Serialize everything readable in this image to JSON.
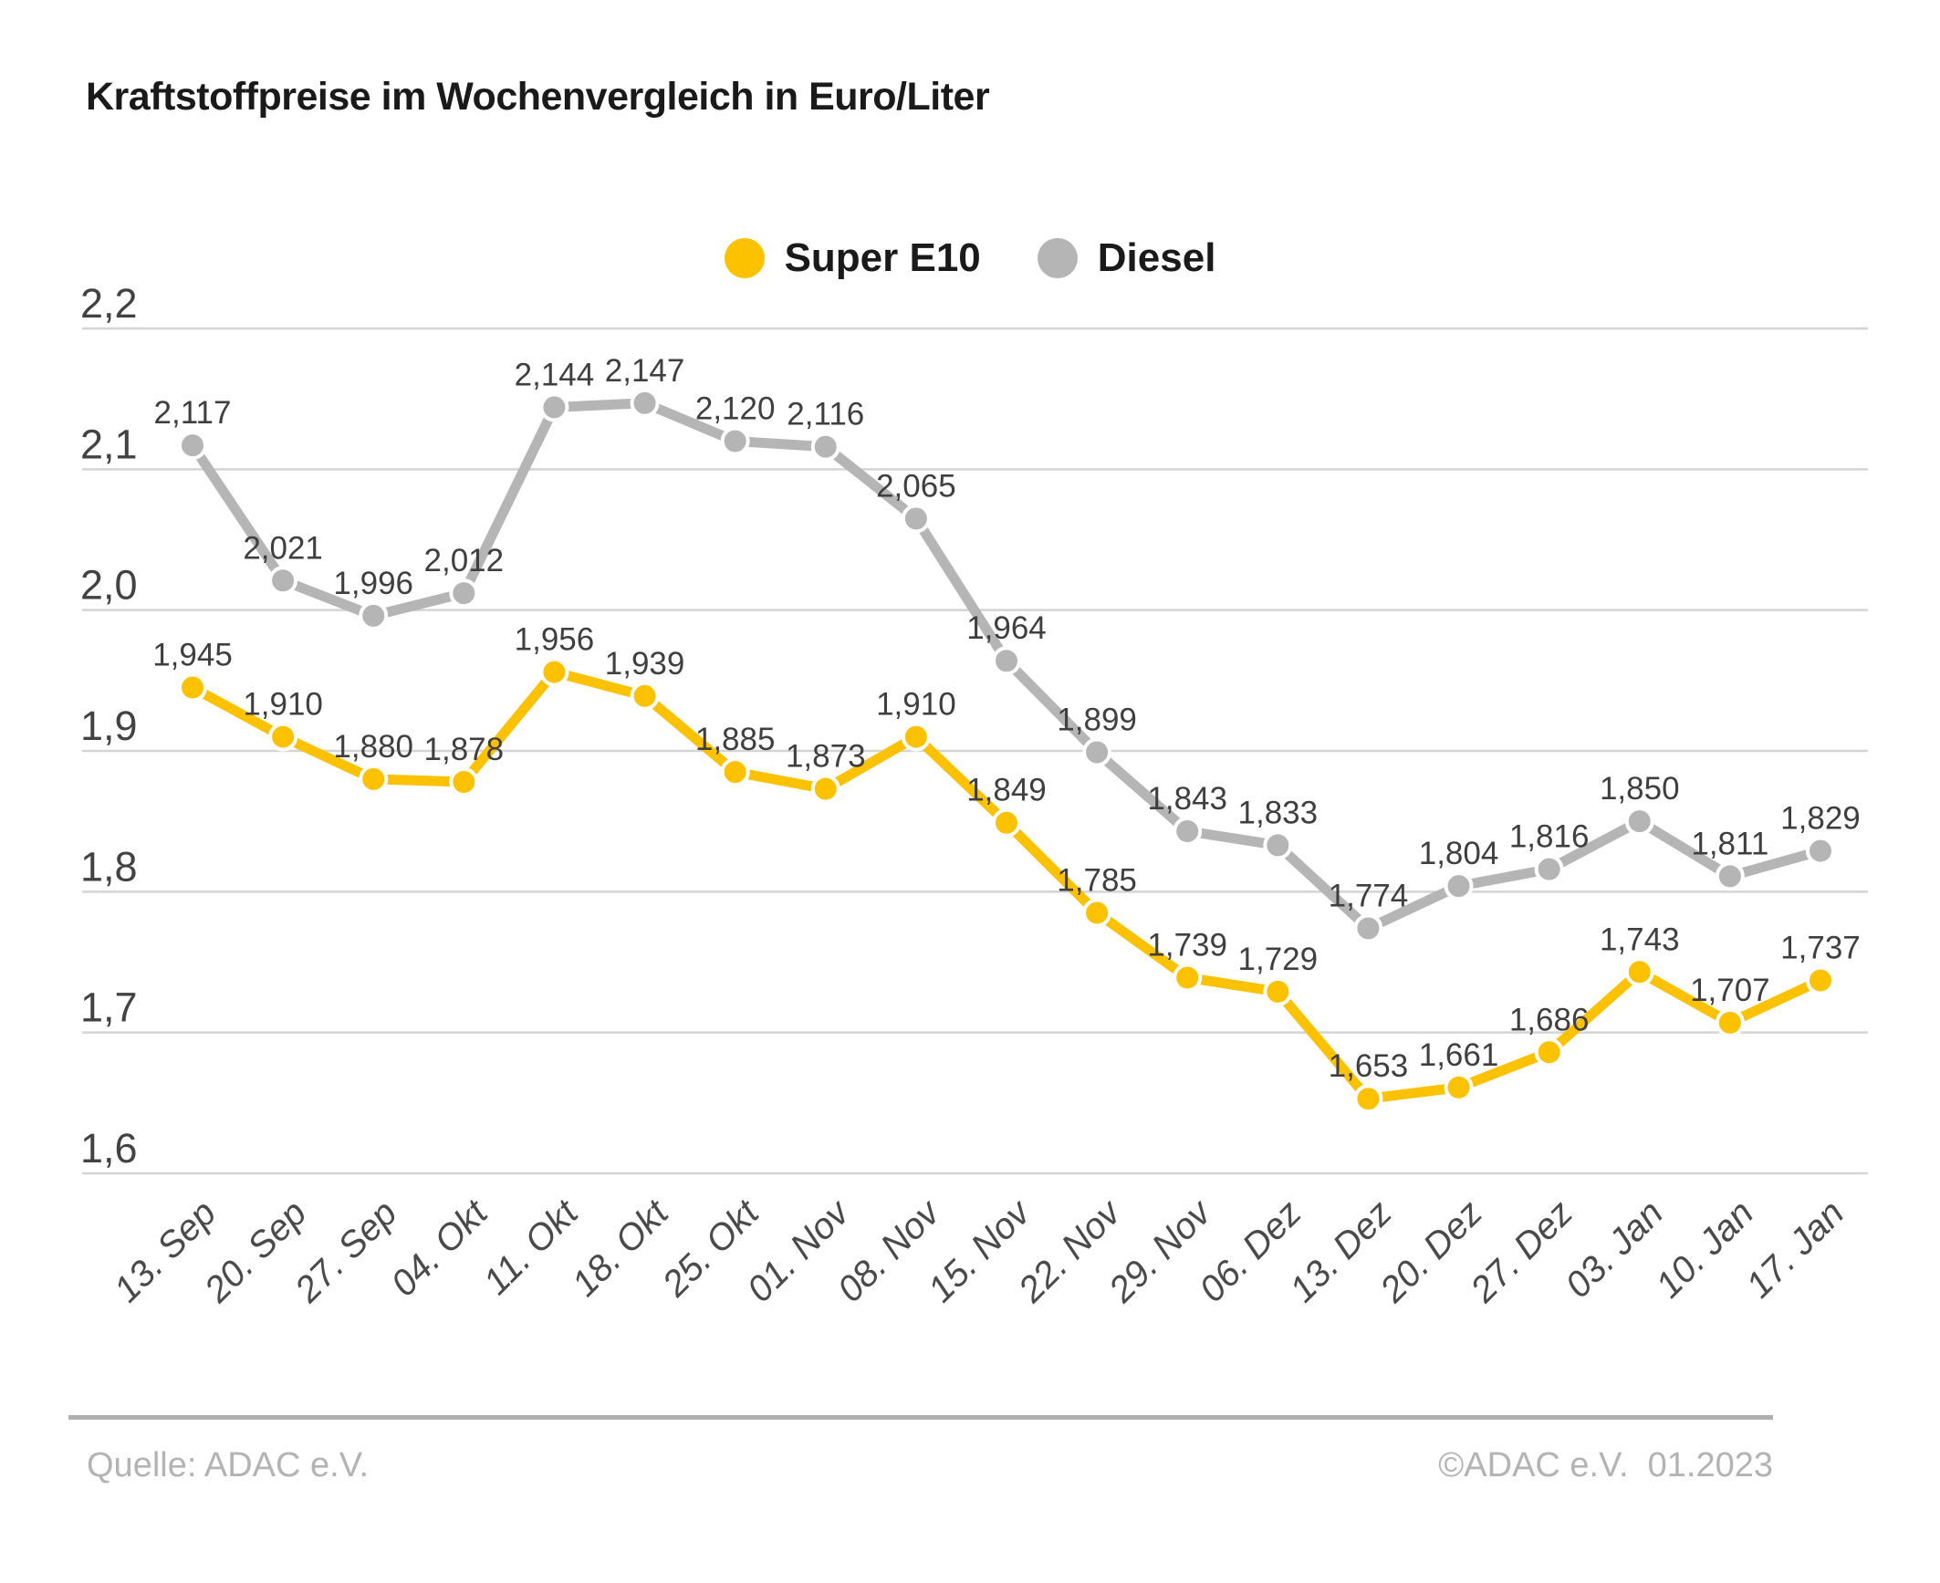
{
  "title": "Kraftstoffpreise im Wochenvergleich in Euro/Liter",
  "footer": {
    "source_left": "Quelle: ADAC e.V.",
    "credit_right": "©ADAC e.V.  01.2023"
  },
  "colors": {
    "super_e10": "#FCC200",
    "diesel": "#B5B5B5",
    "grid": "#D4D4D4",
    "data_label": "#3F3F3F",
    "axis_label": "#424242",
    "x_label": "#4A4A4A",
    "title_text": "#1A1A1A",
    "legend_text": "#1A1A1A",
    "footer_text": "#B3B3B3",
    "footer_rule": "#AFAFAF",
    "marker_ring": "#FFFFFF"
  },
  "chart_data": {
    "type": "line",
    "title": "Kraftstoffpreise im Wochenvergleich in Euro/Liter",
    "categories": [
      "13. Sep",
      "20. Sep",
      "27. Sep",
      "04. Okt",
      "11. Okt",
      "18. Okt",
      "25. Okt",
      "01. Nov",
      "08. Nov",
      "15. Nov",
      "22. Nov",
      "29. Nov",
      "06. Dez",
      "13. Dez",
      "20. Dez",
      "27. Dez",
      "03. Jan",
      "10. Jan",
      "17. Jan"
    ],
    "series": [
      {
        "name": "Super E10",
        "color": "#FCC200",
        "values": [
          1.945,
          1.91,
          1.88,
          1.878,
          1.956,
          1.939,
          1.885,
          1.873,
          1.91,
          1.849,
          1.785,
          1.739,
          1.729,
          1.653,
          1.661,
          1.686,
          1.743,
          1.707,
          1.737
        ]
      },
      {
        "name": "Diesel",
        "color": "#B5B5B5",
        "values": [
          2.117,
          2.021,
          1.996,
          2.012,
          2.144,
          2.147,
          2.12,
          2.116,
          2.065,
          1.964,
          1.899,
          1.843,
          1.833,
          1.774,
          1.804,
          1.816,
          1.85,
          1.811,
          1.829
        ]
      }
    ],
    "ylim": [
      1.6,
      2.2
    ],
    "ytick_step": 0.1,
    "ytick_labels": [
      "2,2",
      "2,1",
      "2,0",
      "1,9",
      "1,8",
      "1,7",
      "1,6"
    ],
    "grid": true,
    "legend_position": "top-center",
    "value_decimals": 3,
    "decimal_separator": ",",
    "ylabel": "",
    "xlabel": ""
  }
}
